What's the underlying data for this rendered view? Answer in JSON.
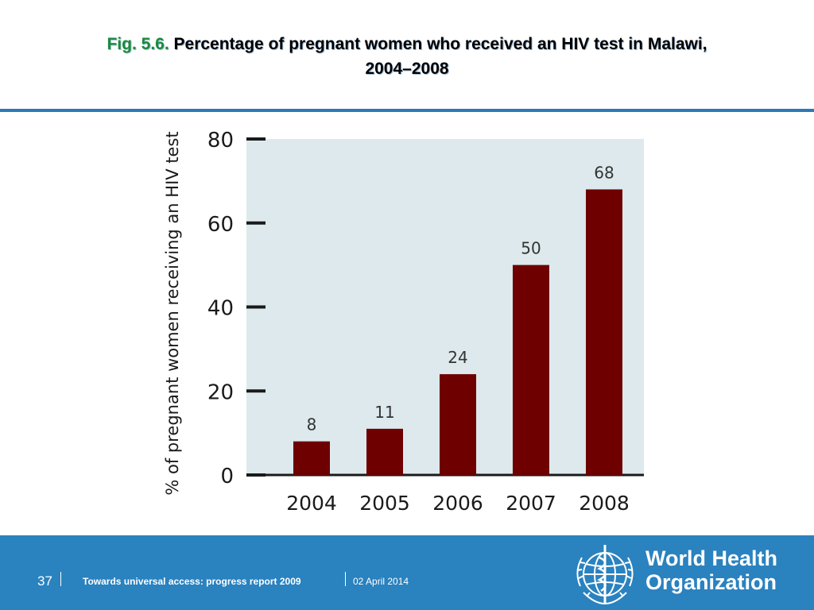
{
  "title": {
    "fig_label": "Fig. 5.6.",
    "line1": "Percentage of pregnant women who received an HIV test in Malawi,",
    "line2": "2004–2008"
  },
  "chart_data": {
    "type": "bar",
    "categories": [
      "2004",
      "2005",
      "2006",
      "2007",
      "2008"
    ],
    "values": [
      8,
      11,
      24,
      50,
      68
    ],
    "data_labels": [
      "8",
      "11",
      "24",
      "50",
      "68"
    ],
    "ylabel": "% of pregnant women receiving an HIV test",
    "xlabel": "",
    "ylim": [
      0,
      80
    ],
    "yticks": [
      0,
      20,
      40,
      60,
      80
    ],
    "grid": false,
    "colors": {
      "bar": "#6e0000",
      "plot_background": "#dde9ed",
      "axis": "#1a1a1a"
    }
  },
  "footer": {
    "page_number": "37",
    "report_title": "Towards universal access: progress report 2009",
    "date": "02 April 2014",
    "org_line1": "World Health",
    "org_line2": "Organization",
    "background": "#2a82bf"
  },
  "logo": {
    "icon": "who-emblem-icon"
  }
}
